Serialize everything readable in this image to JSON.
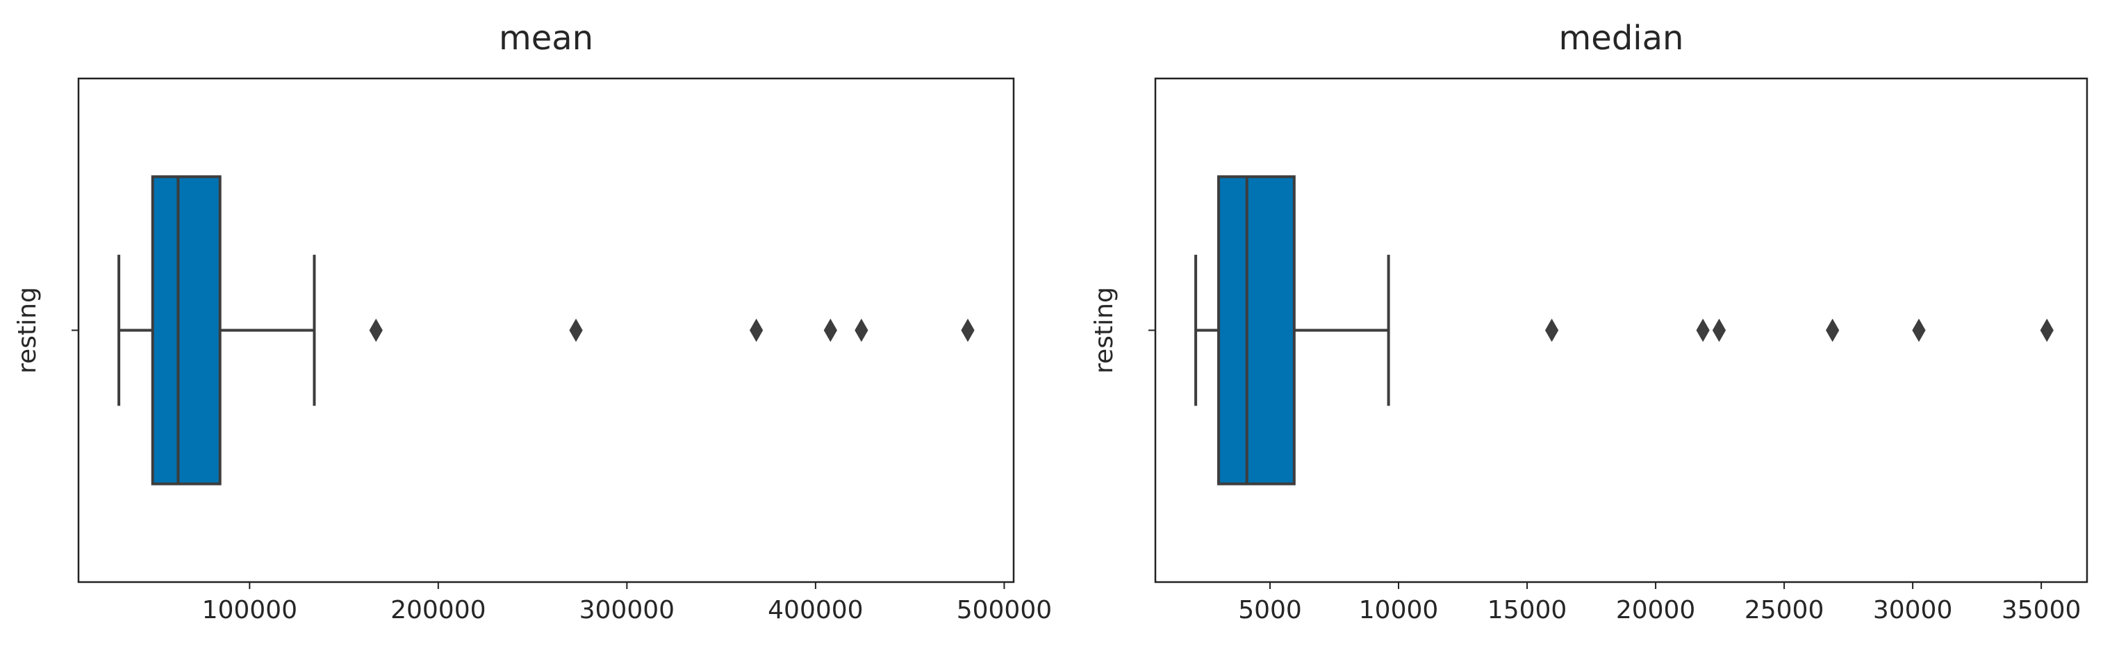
{
  "chart_data": [
    {
      "type": "box",
      "title": "mean",
      "categories": [
        "resting"
      ],
      "color": "#0173b2",
      "boxes": [
        {
          "whislo": 30700,
          "q1": 48600,
          "med": 62100,
          "q3": 84300,
          "whishi": 134300,
          "fliers": [
            167000,
            273000,
            368600,
            407900,
            424300,
            480700
          ]
        }
      ],
      "xlim": [
        9300,
        505000
      ],
      "xticks": [
        100000,
        200000,
        300000,
        400000,
        500000
      ]
    },
    {
      "type": "box",
      "title": "median",
      "categories": [
        "resting"
      ],
      "color": "#0173b2",
      "boxes": [
        {
          "whislo": 2110,
          "q1": 3000,
          "med": 4100,
          "q3": 5940,
          "whishi": 9610,
          "fliers": [
            15960,
            21840,
            22470,
            26880,
            30240,
            35220
          ]
        }
      ],
      "xlim": [
        540,
        36780
      ],
      "xticks": [
        5000,
        10000,
        15000,
        20000,
        25000,
        30000,
        35000
      ]
    }
  ]
}
